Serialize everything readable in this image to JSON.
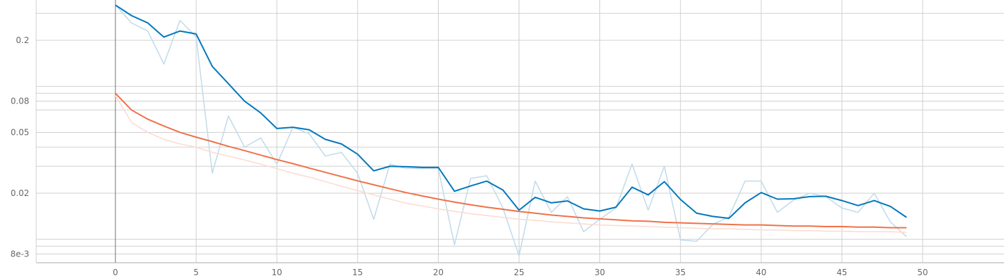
{
  "chart_data": {
    "type": "line",
    "title": "",
    "xlabel": "",
    "ylabel": "",
    "xlim": [
      -5,
      55
    ],
    "ylim": [
      0.0075,
      0.32
    ],
    "yscale": "log",
    "grid": true,
    "x_ticks": [
      {
        "v": 0,
        "label": "0"
      },
      {
        "v": 5,
        "label": "5"
      },
      {
        "v": 10,
        "label": "10"
      },
      {
        "v": 15,
        "label": "15"
      },
      {
        "v": 20,
        "label": "20"
      },
      {
        "v": 25,
        "label": "25"
      },
      {
        "v": 30,
        "label": "30"
      },
      {
        "v": 35,
        "label": "35"
      },
      {
        "v": 40,
        "label": "40"
      },
      {
        "v": 45,
        "label": "45"
      },
      {
        "v": 50,
        "label": "50"
      }
    ],
    "y_ticks": [
      {
        "v": 0.2,
        "label": "0.2"
      },
      {
        "v": 0.08,
        "label": "0.08"
      },
      {
        "v": 0.05,
        "label": "0.05"
      },
      {
        "v": 0.02,
        "label": "0.02"
      },
      {
        "v": 0.008,
        "label": "8e-3"
      }
    ],
    "y_minor_gridlines": [
      0.3,
      0.1,
      0.09,
      0.07,
      0.04,
      0.03,
      0.01,
      0.009
    ],
    "x": [
      0,
      1,
      2,
      3,
      4,
      5,
      6,
      7,
      8,
      9,
      10,
      11,
      12,
      13,
      14,
      15,
      16,
      17,
      18,
      19,
      20,
      21,
      22,
      23,
      24,
      25,
      26,
      27,
      28,
      29,
      30,
      31,
      32,
      33,
      34,
      35,
      36,
      37,
      38,
      39,
      40,
      41,
      42,
      43,
      44,
      45,
      46,
      47,
      48,
      49
    ],
    "series": [
      {
        "color": "#0077bb",
        "raw_color": "#c3dceb",
        "raw": [
          0.34,
          0.26,
          0.23,
          0.14,
          0.27,
          0.21,
          0.027,
          0.064,
          0.04,
          0.046,
          0.031,
          0.054,
          0.049,
          0.035,
          0.037,
          0.027,
          0.0135,
          0.031,
          0.029,
          0.029,
          0.029,
          0.0092,
          0.025,
          0.026,
          0.016,
          0.0078,
          0.024,
          0.015,
          0.019,
          0.0112,
          0.0135,
          0.016,
          0.031,
          0.0155,
          0.03,
          0.0099,
          0.0097,
          0.0125,
          0.014,
          0.024,
          0.024,
          0.015,
          0.018,
          0.02,
          0.019,
          0.016,
          0.015,
          0.02,
          0.013,
          0.0104
        ],
        "values": [
          0.34,
          0.29,
          0.26,
          0.21,
          0.23,
          0.22,
          0.135,
          0.104,
          0.08,
          0.067,
          0.053,
          0.054,
          0.052,
          0.045,
          0.042,
          0.036,
          0.028,
          0.03,
          0.0298,
          0.0295,
          0.0295,
          0.0206,
          0.0223,
          0.024,
          0.021,
          0.0155,
          0.0188,
          0.0173,
          0.0178,
          0.0158,
          0.0153,
          0.0162,
          0.0219,
          0.0195,
          0.0238,
          0.0182,
          0.0148,
          0.0141,
          0.0137,
          0.0173,
          0.0202,
          0.0183,
          0.0184,
          0.019,
          0.0191,
          0.0179,
          0.0166,
          0.0179,
          0.0164,
          0.0139
        ]
      },
      {
        "color": "#f07048",
        "raw_color": "#fbdcd2",
        "raw": [
          0.087,
          0.058,
          0.05,
          0.045,
          0.042,
          0.04,
          0.037,
          0.035,
          0.033,
          0.031,
          0.029,
          0.027,
          0.0255,
          0.0238,
          0.0222,
          0.0208,
          0.0195,
          0.0183,
          0.0172,
          0.0165,
          0.0158,
          0.0152,
          0.0147,
          0.0143,
          0.0139,
          0.0135,
          0.0133,
          0.013,
          0.0128,
          0.0126,
          0.0124,
          0.0123,
          0.0122,
          0.0121,
          0.012,
          0.0119,
          0.0118,
          0.0117,
          0.0117,
          0.0116,
          0.0115,
          0.0115,
          0.0114,
          0.0114,
          0.0113,
          0.0113,
          0.0112,
          0.0112,
          0.0112,
          0.0111
        ],
        "values": [
          0.09,
          0.07,
          0.061,
          0.055,
          0.05,
          0.0465,
          0.0435,
          0.0405,
          0.038,
          0.0355,
          0.0332,
          0.0312,
          0.0292,
          0.0274,
          0.0257,
          0.0241,
          0.0227,
          0.0214,
          0.0202,
          0.0192,
          0.0183,
          0.0175,
          0.0168,
          0.0162,
          0.0157,
          0.0152,
          0.0148,
          0.0144,
          0.0141,
          0.0138,
          0.0136,
          0.0134,
          0.0132,
          0.0131,
          0.0129,
          0.0128,
          0.0127,
          0.0126,
          0.0125,
          0.0124,
          0.0124,
          0.0123,
          0.0122,
          0.0122,
          0.0121,
          0.0121,
          0.012,
          0.012,
          0.0119,
          0.0119
        ]
      }
    ]
  }
}
